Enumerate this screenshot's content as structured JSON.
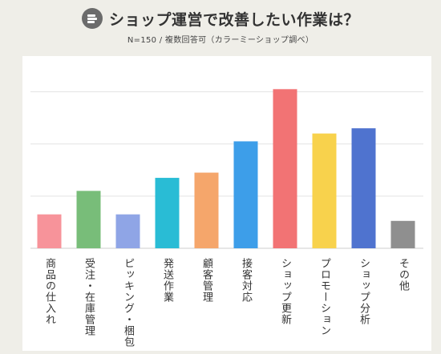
{
  "header": {
    "title": "ショップ運営で改善したい作業は？",
    "subtitle": "N=150 / 複数回答可（カラーミーショップ調べ）",
    "logo_icon": "stacked-lines-logo-icon"
  },
  "colors": {
    "background": "#efeee8",
    "panel": "#ffffff",
    "grid": "#e3e3e3",
    "axis": "#cfcfcf"
  },
  "chart_data": {
    "type": "bar",
    "categories": [
      "商品の仕入れ",
      "受注・在庫管理",
      "ピッキング・梱包",
      "発送作業",
      "顧客管理",
      "接客対応",
      "ショップ更新",
      "プロモーション",
      "ショップ分析",
      "その他"
    ],
    "values": [
      13,
      22,
      13,
      27,
      29,
      41,
      61,
      44,
      46,
      10.5
    ],
    "bar_colors": [
      "#f7939a",
      "#78bd79",
      "#8fa5e6",
      "#29bcd5",
      "#f5a66b",
      "#3d9ee9",
      "#f27374",
      "#f8d24c",
      "#4f73cf",
      "#8f8f8f"
    ],
    "title": "ショップ運営で改善したい作業は？",
    "xlabel": "",
    "ylabel": "",
    "ylim": [
      0,
      70
    ],
    "yticks": [
      0,
      20,
      40,
      60
    ],
    "grid": true
  }
}
